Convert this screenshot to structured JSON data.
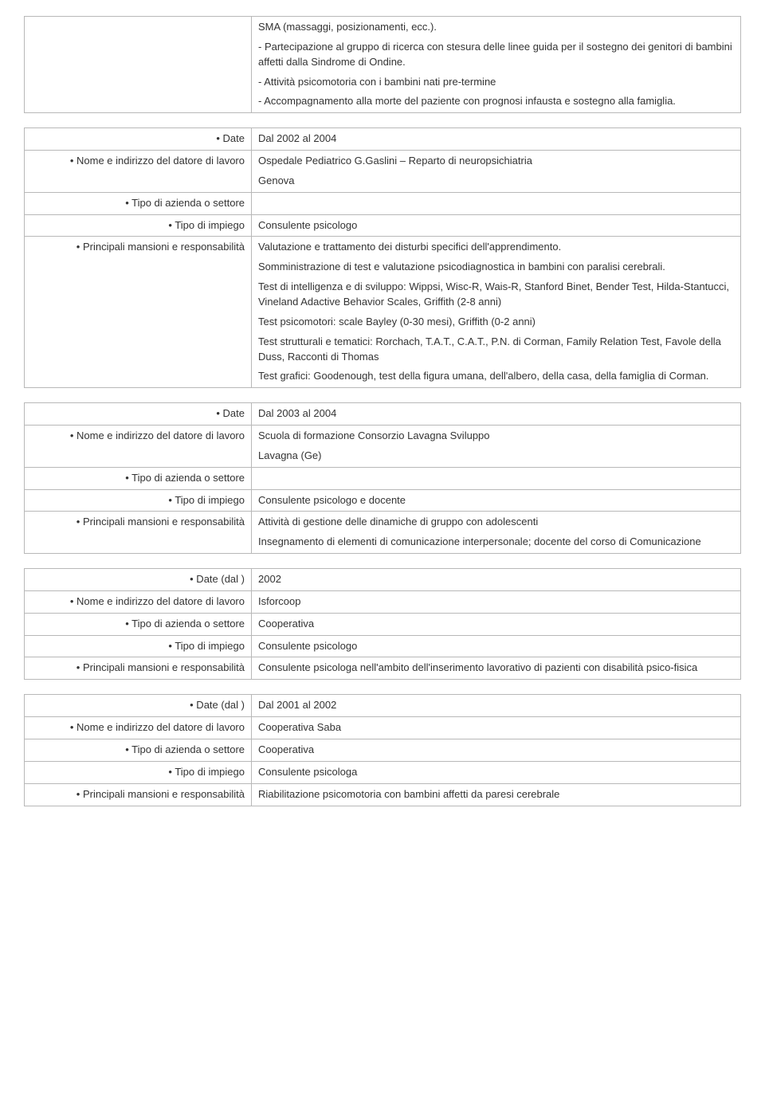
{
  "labels": {
    "date": "• Date",
    "date_dal": "• Date (dal )",
    "employer": "• Nome e indirizzo del datore di lavoro",
    "sector": "• Tipo di azienda o settore",
    "jobtype": "• Tipo di impiego",
    "duties": "• Principali mansioni e responsabilità"
  },
  "section0": {
    "p1": "SMA (massaggi, posizionamenti, ecc.).",
    "p2": "- Partecipazione al gruppo di ricerca con stesura delle linee guida per il sostegno dei genitori di bambini affetti dalla Sindrome di Ondine.",
    "p3": "- Attività psicomotoria con i bambini nati pre-termine",
    "p4": "- Accompagnamento alla morte del paziente con prognosi infausta e sostegno alla famiglia."
  },
  "section1": {
    "date": "Dal 2002 al 2004",
    "employer_l1": " Ospedale Pediatrico G.Gaslini – Reparto di neuropsichiatria",
    "employer_l2": "Genova",
    "sector": "",
    "jobtype": "Consulente psicologo",
    "duties_p1": "Valutazione e trattamento dei disturbi specifici dell'apprendimento.",
    "duties_p2": "Somministrazione di test e valutazione psicodiagnostica in bambini con paralisi cerebrali.",
    "duties_p3": "Test di intelligenza e di sviluppo: Wippsi, Wisc-R,  Wais-R,  Stanford Binet, Bender Test, Hilda-Stantucci, Vineland Adactive Behavior Scales, Griffith (2-8 anni)",
    "duties_p4": "Test psicomotori: scale Bayley (0-30 mesi), Griffith (0-2 anni)",
    "duties_p5": "Test strutturali e tematici: Rorchach, T.A.T., C.A.T., P.N. di Corman, Family Relation Test, Favole della Duss, Racconti di Thomas",
    "duties_p6": "Test grafici: Goodenough, test della figura umana, dell'albero,  della casa, della famiglia di Corman."
  },
  "section2": {
    "date": "Dal 2003 al 2004",
    "employer_l1": " Scuola di formazione Consorzio Lavagna Sviluppo",
    "employer_l2": "Lavagna (Ge)",
    "sector": "",
    "jobtype": "Consulente psicologo e docente",
    "duties_p1": "Attività di gestione  delle dinamiche di gruppo con adolescenti",
    "duties_p2": "Insegnamento di elementi di comunicazione interpersonale; docente del corso di Comunicazione"
  },
  "section3": {
    "date": "2002",
    "employer": "Isforcoop",
    "sector": "Cooperativa",
    "jobtype": "Consulente psicologo",
    "duties": "Consulente psicologa nell'ambito dell'inserimento lavorativo di pazienti con disabilità psico-fisica"
  },
  "section4": {
    "date": "Dal 2001 al 2002",
    "employer": " Cooperativa Saba",
    "sector": " Cooperativa",
    "jobtype": "Consulente psicologa",
    "duties": "Riabilitazione psicomotoria con bambini affetti da paresi cerebrale"
  }
}
